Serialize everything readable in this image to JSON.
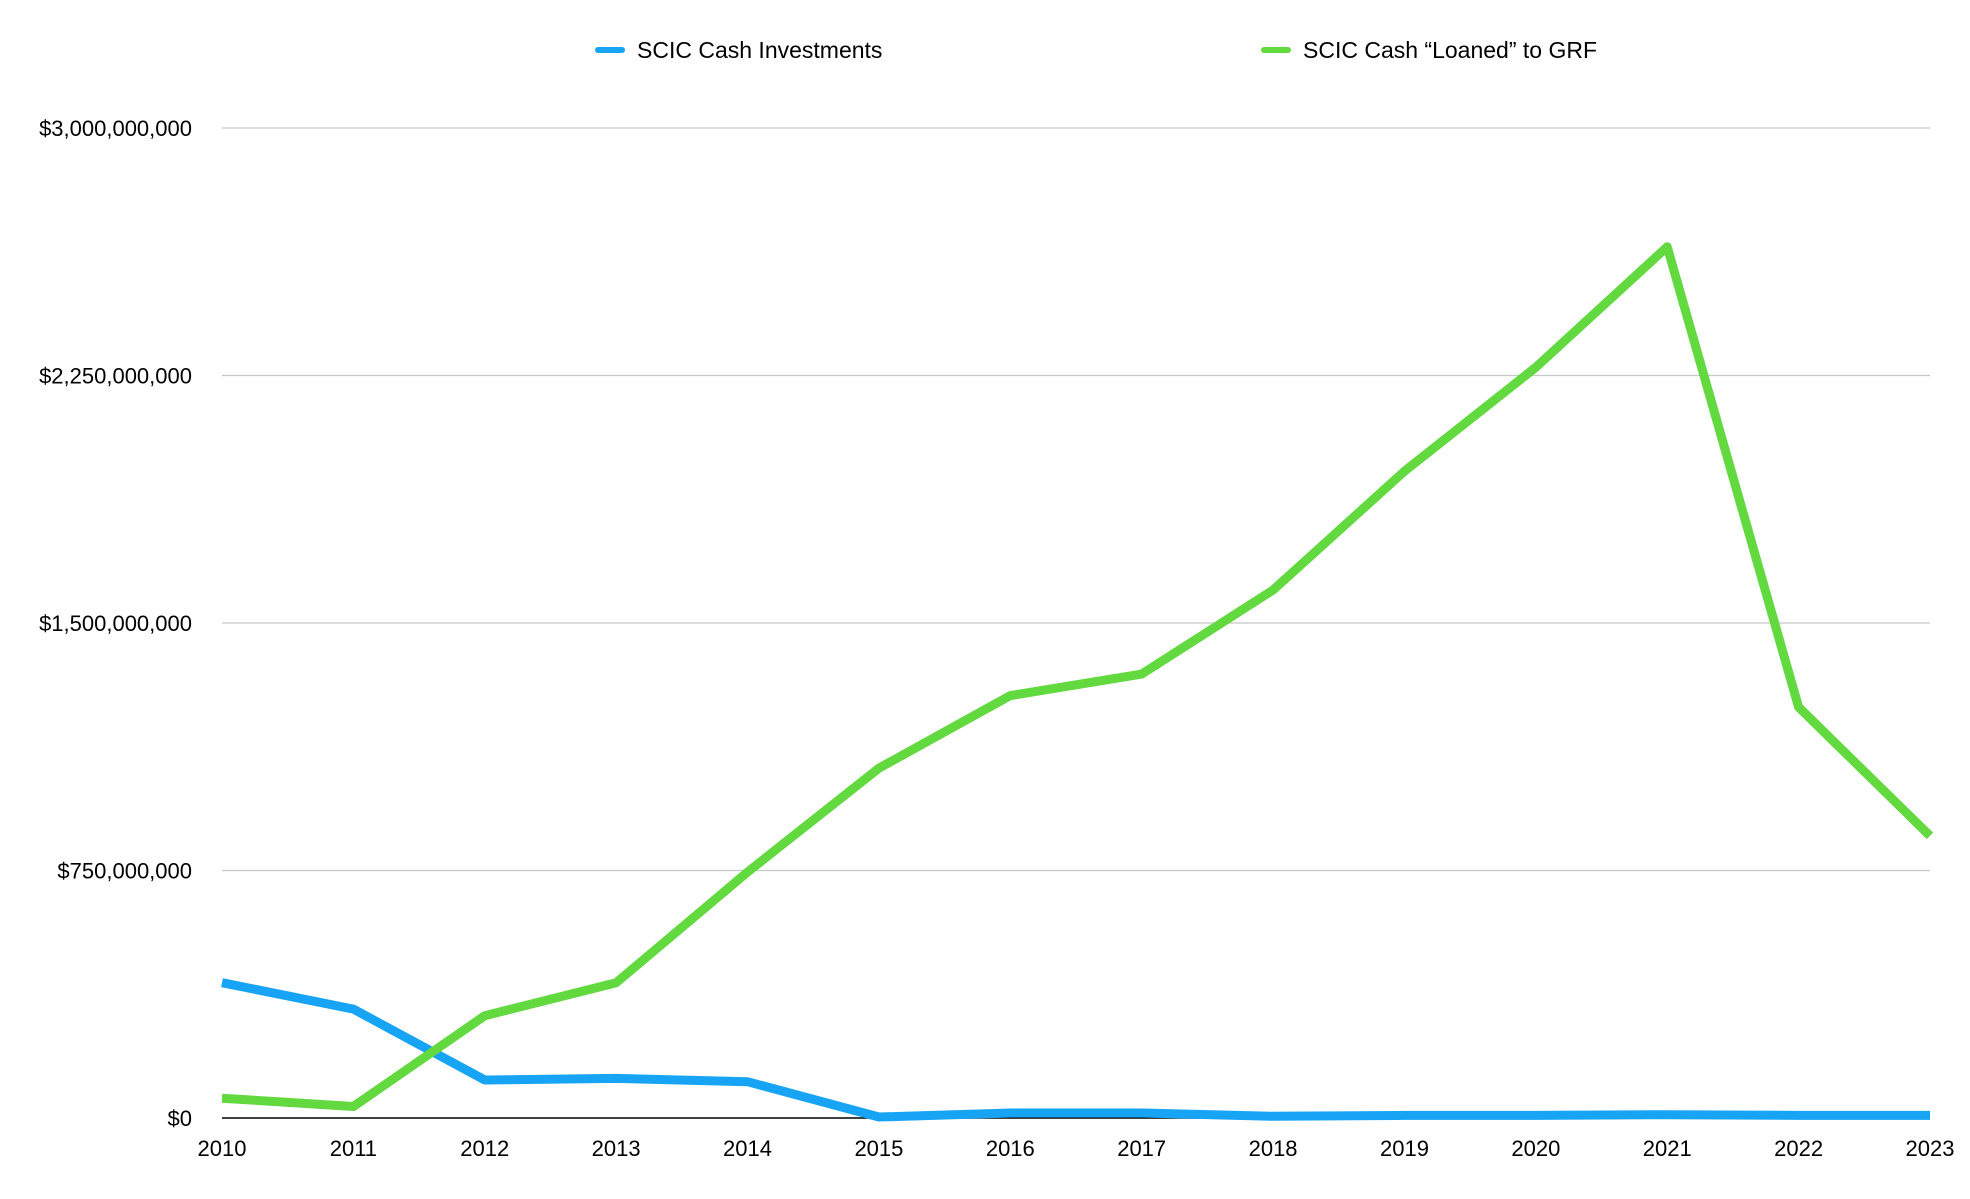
{
  "chart_data": {
    "type": "line",
    "title": "",
    "xlabel": "",
    "ylabel": "",
    "x": [
      "2010",
      "2011",
      "2012",
      "2013",
      "2014",
      "2015",
      "2016",
      "2017",
      "2018",
      "2019",
      "2020",
      "2021",
      "2022",
      "2023"
    ],
    "ylim": [
      0,
      3000000000
    ],
    "y_ticks": [
      0,
      750000000,
      1500000000,
      2250000000,
      3000000000
    ],
    "y_tick_labels": [
      "$0",
      "$750,000,000",
      "$1,500,000,000",
      "$2,250,000,000",
      "$3,000,000,000"
    ],
    "grid": "horizontal",
    "legend_position": "top",
    "series": [
      {
        "name": "SCIC Cash Investments",
        "color": "#17a4f5",
        "values": [
          410000000,
          330000000,
          115000000,
          120000000,
          110000000,
          3000000,
          15000000,
          15000000,
          5000000,
          8000000,
          8000000,
          10000000,
          8000000,
          8000000
        ]
      },
      {
        "name": "SCIC Cash “Loaned” to GRF",
        "color": "#62d93f",
        "values": [
          60000000,
          35000000,
          310000000,
          410000000,
          745000000,
          1060000000,
          1280000000,
          1345000000,
          1600000000,
          1960000000,
          2275000000,
          2640000000,
          1245000000,
          855000000
        ]
      }
    ]
  }
}
